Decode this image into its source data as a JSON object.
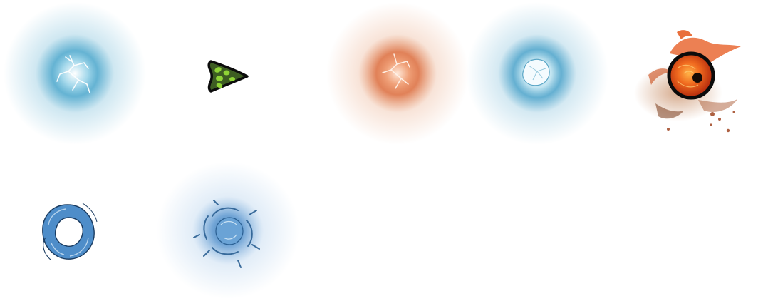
{
  "sprite_sheet": {
    "background": "#ffffff",
    "sprites": [
      {
        "name": "blue-lightning-orb",
        "row": 1,
        "col": 1,
        "glow_color": "#3ea0c8",
        "core_color": "#ffffff"
      },
      {
        "name": "green-spotted-arrowhead",
        "row": 1,
        "col": 2,
        "fill_color": "#3d5d22",
        "spot_color": "#8fd436",
        "outline_color": "#0c0c0c"
      },
      {
        "name": "orange-lightning-orb",
        "row": 1,
        "col": 3,
        "glow_color": "#d9622f",
        "core_color": "#ffe9d9"
      },
      {
        "name": "ice-crystal-orb",
        "row": 1,
        "col": 4,
        "glow_color": "#3e9cc6",
        "core_color": "#eaf6fb"
      },
      {
        "name": "flaming-eye-orb",
        "row": 1,
        "col": 5,
        "fire_color": "#e5561a",
        "ring_color": "#0b0b0b",
        "pupil_color": "#150a05"
      },
      {
        "name": "water-swirl-ring",
        "row": 2,
        "col": 1,
        "fill_color": "#4e8dc9",
        "edge_color": "#1a3b60"
      },
      {
        "name": "water-vortex-orb",
        "row": 2,
        "col": 2,
        "glow_color": "#4f8fcc",
        "core_color": "#2f6ea8"
      }
    ]
  }
}
